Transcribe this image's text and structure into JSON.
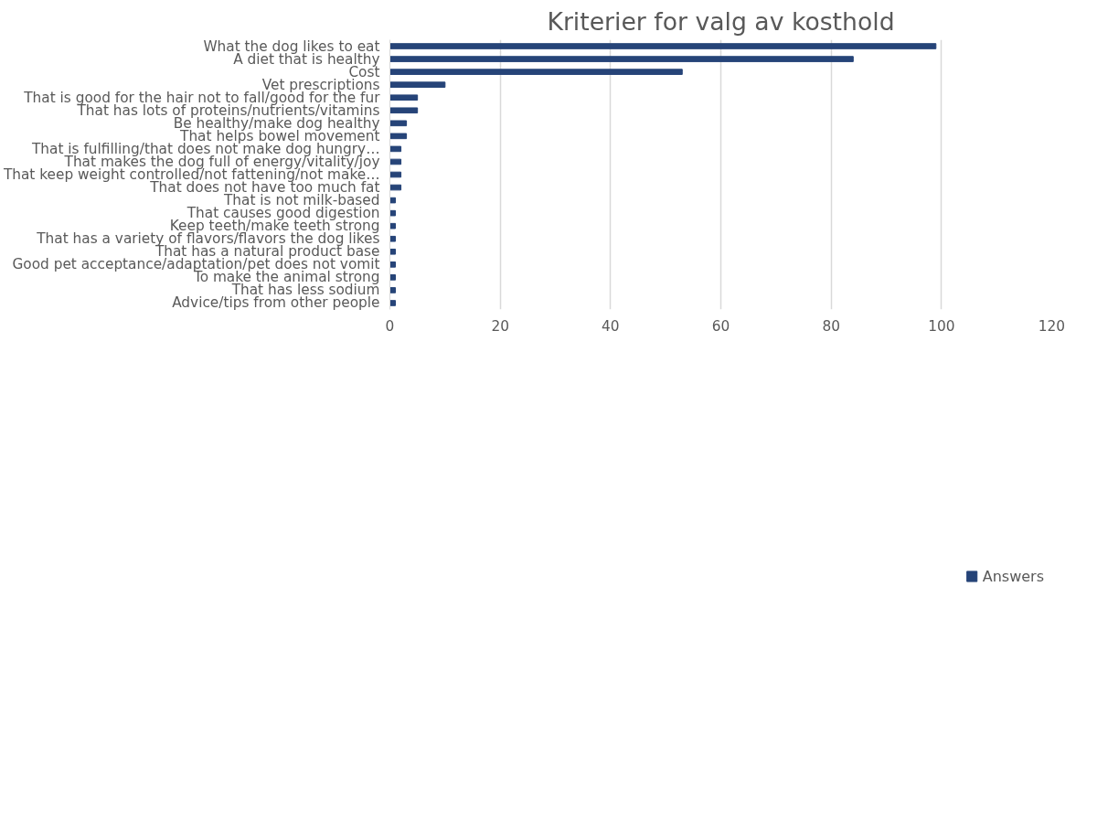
{
  "chart_data": {
    "type": "bar",
    "orientation": "horizontal",
    "title": "Kriterier for valg av kosthold",
    "categories": [
      "What the dog likes to eat",
      "A diet that is healthy",
      "Cost",
      "Vet prescriptions",
      "That is good for the hair not to fall/good for the fur",
      "That has lots of proteins/nutrients/vitamins",
      "Be healthy/make dog healthy",
      "That helps bowel movement",
      "That is fulfilling/that does not make dog hungry…",
      "That makes the dog full of energy/vitality/joy",
      "That keep weight controlled/not fattening/not make…",
      "That does not have too much fat",
      "That is not milk-based",
      "That causes good digestion",
      "Keep teeth/make teeth strong",
      "That has a variety of flavors/flavors the dog likes",
      "That has a natural product base",
      "Good pet acceptance/adaptation/pet does not vomit",
      "To make the animal strong",
      "That has less sodium",
      "Advice/tips from other people"
    ],
    "series": [
      {
        "color": "#4472c4",
        "values": [
          null,
          null,
          null,
          null,
          null,
          null,
          null,
          null,
          null,
          null,
          null,
          null,
          null,
          null,
          null,
          null,
          null,
          null,
          null,
          null,
          null
        ]
      },
      {
        "color": "#ed7d31",
        "values": [
          null,
          null,
          null,
          null,
          null,
          null,
          null,
          null,
          null,
          null,
          null,
          null,
          null,
          null,
          null,
          null,
          null,
          null,
          null,
          null,
          null
        ]
      },
      {
        "color": "#a5a5a5",
        "values": [
          null,
          null,
          null,
          null,
          null,
          null,
          null,
          null,
          null,
          null,
          null,
          null,
          null,
          null,
          null,
          null,
          null,
          null,
          null,
          null,
          null
        ]
      },
      {
        "color": "#ffc000",
        "values": [
          null,
          null,
          null,
          null,
          null,
          null,
          null,
          null,
          null,
          null,
          null,
          null,
          null,
          null,
          null,
          null,
          null,
          null,
          null,
          null,
          null
        ]
      },
      {
        "color": "#5b9bd5",
        "values": [
          null,
          null,
          null,
          null,
          null,
          null,
          null,
          null,
          null,
          null,
          null,
          null,
          null,
          null,
          null,
          null,
          null,
          null,
          null,
          null,
          null
        ]
      },
      {
        "color": "#70ad47",
        "values": [
          null,
          null,
          null,
          null,
          null,
          null,
          null,
          null,
          null,
          null,
          null,
          null,
          null,
          null,
          null,
          null,
          null,
          null,
          null,
          null,
          null
        ]
      },
      {
        "name": "Answers",
        "color": "#264478",
        "values": [
          99,
          84,
          53,
          10,
          5,
          5,
          3,
          3,
          2,
          2,
          2,
          2,
          1,
          1,
          1,
          1,
          1,
          1,
          1,
          1,
          1
        ]
      }
    ],
    "xlim": [
      0,
      120
    ],
    "xticks": [
      0,
      20,
      40,
      60,
      80,
      100,
      120
    ],
    "grid": "x",
    "legend": "bottom"
  }
}
